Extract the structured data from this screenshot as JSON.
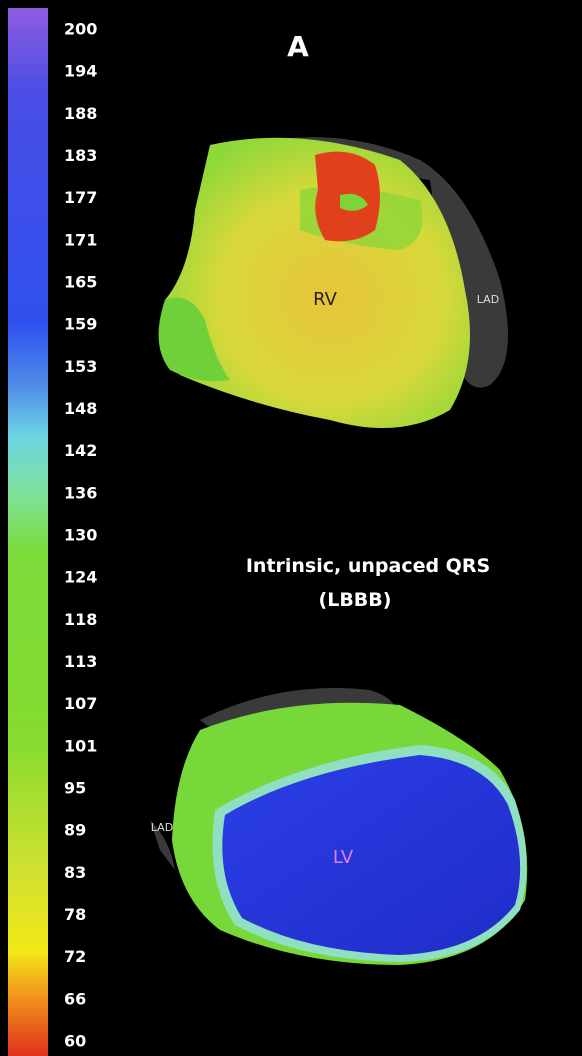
{
  "panel_label": "A",
  "colorbar": {
    "ticks": [
      200,
      194,
      188,
      183,
      177,
      171,
      165,
      159,
      153,
      148,
      142,
      136,
      130,
      124,
      118,
      113,
      107,
      101,
      95,
      89,
      83,
      78,
      72,
      66,
      60
    ]
  },
  "top_map": {
    "chamber_label": "RV",
    "artery_label": "LAD"
  },
  "caption": {
    "line1": "Intrinsic, unpaced QRS",
    "line2": "(LBBB)"
  },
  "bottom_map": {
    "chamber_label": "LV",
    "artery_label": "LAD"
  }
}
